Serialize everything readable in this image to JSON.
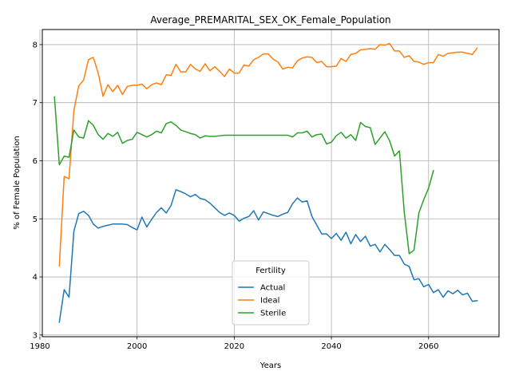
{
  "chart_data": {
    "type": "line",
    "title": "Average_PREMARITAL_SEX_OK_Female_Population",
    "xlabel": "Years",
    "ylabel": "% of Female Population",
    "xlim": [
      1980.5,
      2074.5
    ],
    "ylim": [
      2.97,
      8.26
    ],
    "xticks": [
      1980,
      2000,
      2020,
      2040,
      2060
    ],
    "yticks": [
      3,
      4,
      5,
      6,
      7,
      8
    ],
    "grid": true,
    "legend": {
      "title": "Fertility",
      "placement": "lower center"
    },
    "series": [
      {
        "name": "Actual",
        "color": "#1f77b4",
        "points": [
          [
            1984,
            3.22
          ],
          [
            1985,
            3.78
          ],
          [
            1986,
            3.65
          ],
          [
            1987,
            4.79
          ],
          [
            1988,
            5.09
          ],
          [
            1989,
            5.13
          ],
          [
            1990,
            5.06
          ],
          [
            1991,
            4.91
          ],
          [
            1992,
            4.84
          ],
          [
            1993,
            4.87
          ],
          [
            1994,
            4.89
          ],
          [
            1995,
            4.91
          ],
          [
            1996,
            4.91
          ],
          [
            1997,
            4.91
          ],
          [
            1998,
            4.9
          ],
          [
            1999,
            4.85
          ],
          [
            2000,
            4.81
          ],
          [
            2001,
            5.03
          ],
          [
            2002,
            4.86
          ],
          [
            2003,
            4.99
          ],
          [
            2004,
            5.11
          ],
          [
            2005,
            5.19
          ],
          [
            2006,
            5.1
          ],
          [
            2007,
            5.23
          ],
          [
            2008,
            5.5
          ],
          [
            2009,
            5.47
          ],
          [
            2010,
            5.43
          ],
          [
            2011,
            5.38
          ],
          [
            2012,
            5.42
          ],
          [
            2013,
            5.35
          ],
          [
            2014,
            5.33
          ],
          [
            2015,
            5.27
          ],
          [
            2016,
            5.19
          ],
          [
            2017,
            5.11
          ],
          [
            2018,
            5.06
          ],
          [
            2019,
            5.1
          ],
          [
            2020,
            5.06
          ],
          [
            2021,
            4.96
          ],
          [
            2022,
            5.01
          ],
          [
            2023,
            5.04
          ],
          [
            2024,
            5.14
          ],
          [
            2025,
            4.98
          ],
          [
            2026,
            5.12
          ],
          [
            2027,
            5.09
          ],
          [
            2028,
            5.06
          ],
          [
            2029,
            5.04
          ],
          [
            2030,
            5.08
          ],
          [
            2031,
            5.11
          ],
          [
            2032,
            5.26
          ],
          [
            2033,
            5.36
          ],
          [
            2034,
            5.29
          ],
          [
            2035,
            5.31
          ],
          [
            2036,
            5.04
          ],
          [
            2037,
            4.89
          ],
          [
            2038,
            4.74
          ],
          [
            2039,
            4.74
          ],
          [
            2040,
            4.66
          ],
          [
            2041,
            4.75
          ],
          [
            2042,
            4.63
          ],
          [
            2043,
            4.77
          ],
          [
            2044,
            4.57
          ],
          [
            2045,
            4.73
          ],
          [
            2046,
            4.61
          ],
          [
            2047,
            4.7
          ],
          [
            2048,
            4.53
          ],
          [
            2049,
            4.56
          ],
          [
            2050,
            4.43
          ],
          [
            2051,
            4.56
          ],
          [
            2052,
            4.47
          ],
          [
            2053,
            4.37
          ],
          [
            2054,
            4.37
          ],
          [
            2055,
            4.22
          ],
          [
            2056,
            4.18
          ],
          [
            2057,
            3.95
          ],
          [
            2058,
            3.97
          ],
          [
            2059,
            3.83
          ],
          [
            2060,
            3.87
          ],
          [
            2061,
            3.73
          ],
          [
            2062,
            3.78
          ],
          [
            2063,
            3.65
          ],
          [
            2064,
            3.76
          ],
          [
            2065,
            3.71
          ],
          [
            2066,
            3.77
          ],
          [
            2067,
            3.69
          ],
          [
            2068,
            3.72
          ],
          [
            2069,
            3.58
          ],
          [
            2070,
            3.59
          ]
        ]
      },
      {
        "name": "Ideal",
        "color": "#ff7f0e",
        "points": [
          [
            1984,
            4.19
          ],
          [
            1985,
            5.73
          ],
          [
            1986,
            5.69
          ],
          [
            1987,
            6.87
          ],
          [
            1988,
            7.29
          ],
          [
            1989,
            7.39
          ],
          [
            1990,
            7.74
          ],
          [
            1991,
            7.78
          ],
          [
            1992,
            7.51
          ],
          [
            1993,
            7.11
          ],
          [
            1994,
            7.31
          ],
          [
            1995,
            7.19
          ],
          [
            1996,
            7.3
          ],
          [
            1997,
            7.14
          ],
          [
            1998,
            7.28
          ],
          [
            1999,
            7.3
          ],
          [
            2000,
            7.3
          ],
          [
            2001,
            7.32
          ],
          [
            2002,
            7.24
          ],
          [
            2003,
            7.31
          ],
          [
            2004,
            7.34
          ],
          [
            2005,
            7.31
          ],
          [
            2006,
            7.48
          ],
          [
            2007,
            7.47
          ],
          [
            2008,
            7.66
          ],
          [
            2009,
            7.53
          ],
          [
            2010,
            7.53
          ],
          [
            2011,
            7.66
          ],
          [
            2012,
            7.58
          ],
          [
            2013,
            7.54
          ],
          [
            2014,
            7.67
          ],
          [
            2015,
            7.55
          ],
          [
            2016,
            7.62
          ],
          [
            2017,
            7.54
          ],
          [
            2018,
            7.45
          ],
          [
            2019,
            7.58
          ],
          [
            2020,
            7.51
          ],
          [
            2021,
            7.51
          ],
          [
            2022,
            7.65
          ],
          [
            2023,
            7.63
          ],
          [
            2024,
            7.74
          ],
          [
            2025,
            7.78
          ],
          [
            2026,
            7.84
          ],
          [
            2027,
            7.84
          ],
          [
            2028,
            7.75
          ],
          [
            2029,
            7.7
          ],
          [
            2030,
            7.58
          ],
          [
            2031,
            7.61
          ],
          [
            2032,
            7.6
          ],
          [
            2033,
            7.72
          ],
          [
            2034,
            7.77
          ],
          [
            2035,
            7.79
          ],
          [
            2036,
            7.78
          ],
          [
            2037,
            7.69
          ],
          [
            2038,
            7.71
          ],
          [
            2039,
            7.62
          ],
          [
            2040,
            7.62
          ],
          [
            2041,
            7.63
          ],
          [
            2042,
            7.76
          ],
          [
            2043,
            7.71
          ],
          [
            2044,
            7.83
          ],
          [
            2045,
            7.85
          ],
          [
            2046,
            7.91
          ],
          [
            2047,
            7.92
          ],
          [
            2048,
            7.93
          ],
          [
            2049,
            7.92
          ],
          [
            2050,
            8.0
          ],
          [
            2051,
            7.99
          ],
          [
            2052,
            8.02
          ],
          [
            2053,
            7.89
          ],
          [
            2054,
            7.89
          ],
          [
            2055,
            7.78
          ],
          [
            2056,
            7.81
          ],
          [
            2057,
            7.71
          ],
          [
            2058,
            7.7
          ],
          [
            2059,
            7.66
          ],
          [
            2060,
            7.69
          ],
          [
            2061,
            7.69
          ],
          [
            2062,
            7.83
          ],
          [
            2063,
            7.8
          ],
          [
            2064,
            7.85
          ],
          [
            2065,
            7.86
          ],
          [
            2066,
            7.87
          ],
          [
            2067,
            7.87
          ],
          [
            2068,
            7.85
          ],
          [
            2069,
            7.83
          ],
          [
            2070,
            7.94
          ]
        ]
      },
      {
        "name": "Sterile",
        "color": "#2ca02c",
        "points": [
          [
            1983,
            7.1
          ],
          [
            1984,
            5.93
          ],
          [
            1985,
            6.08
          ],
          [
            1986,
            6.06
          ],
          [
            1987,
            6.53
          ],
          [
            1988,
            6.41
          ],
          [
            1989,
            6.39
          ],
          [
            1990,
            6.69
          ],
          [
            1991,
            6.61
          ],
          [
            1992,
            6.45
          ],
          [
            1993,
            6.37
          ],
          [
            1994,
            6.47
          ],
          [
            1995,
            6.42
          ],
          [
            1996,
            6.49
          ],
          [
            1997,
            6.3
          ],
          [
            1998,
            6.35
          ],
          [
            1999,
            6.37
          ],
          [
            2000,
            6.49
          ],
          [
            2001,
            6.45
          ],
          [
            2002,
            6.41
          ],
          [
            2003,
            6.45
          ],
          [
            2004,
            6.51
          ],
          [
            2005,
            6.48
          ],
          [
            2006,
            6.64
          ],
          [
            2007,
            6.67
          ],
          [
            2008,
            6.61
          ],
          [
            2009,
            6.53
          ],
          [
            2010,
            6.5
          ],
          [
            2011,
            6.47
          ],
          [
            2012,
            6.45
          ],
          [
            2013,
            6.39
          ],
          [
            2014,
            6.43
          ],
          [
            2015,
            6.42
          ],
          [
            2016,
            6.42
          ],
          [
            2017,
            6.43
          ],
          [
            2018,
            6.44
          ],
          [
            2019,
            6.44
          ],
          [
            2020,
            6.44
          ],
          [
            2021,
            6.44
          ],
          [
            2022,
            6.44
          ],
          [
            2023,
            6.44
          ],
          [
            2024,
            6.44
          ],
          [
            2025,
            6.44
          ],
          [
            2026,
            6.44
          ],
          [
            2027,
            6.44
          ],
          [
            2028,
            6.44
          ],
          [
            2029,
            6.44
          ],
          [
            2030,
            6.44
          ],
          [
            2031,
            6.44
          ],
          [
            2032,
            6.41
          ],
          [
            2033,
            6.48
          ],
          [
            2034,
            6.48
          ],
          [
            2035,
            6.51
          ],
          [
            2036,
            6.41
          ],
          [
            2037,
            6.45
          ],
          [
            2038,
            6.46
          ],
          [
            2039,
            6.29
          ],
          [
            2040,
            6.32
          ],
          [
            2041,
            6.43
          ],
          [
            2042,
            6.49
          ],
          [
            2043,
            6.39
          ],
          [
            2044,
            6.45
          ],
          [
            2045,
            6.35
          ],
          [
            2046,
            6.66
          ],
          [
            2047,
            6.59
          ],
          [
            2048,
            6.57
          ],
          [
            2049,
            6.28
          ],
          [
            2050,
            6.39
          ],
          [
            2051,
            6.5
          ],
          [
            2052,
            6.34
          ],
          [
            2053,
            6.08
          ],
          [
            2054,
            6.17
          ],
          [
            2055,
            5.11
          ],
          [
            2056,
            4.4
          ],
          [
            2057,
            4.46
          ],
          [
            2058,
            5.1
          ],
          [
            2059,
            5.33
          ],
          [
            2060,
            5.53
          ],
          [
            2061,
            5.83
          ]
        ]
      }
    ]
  }
}
